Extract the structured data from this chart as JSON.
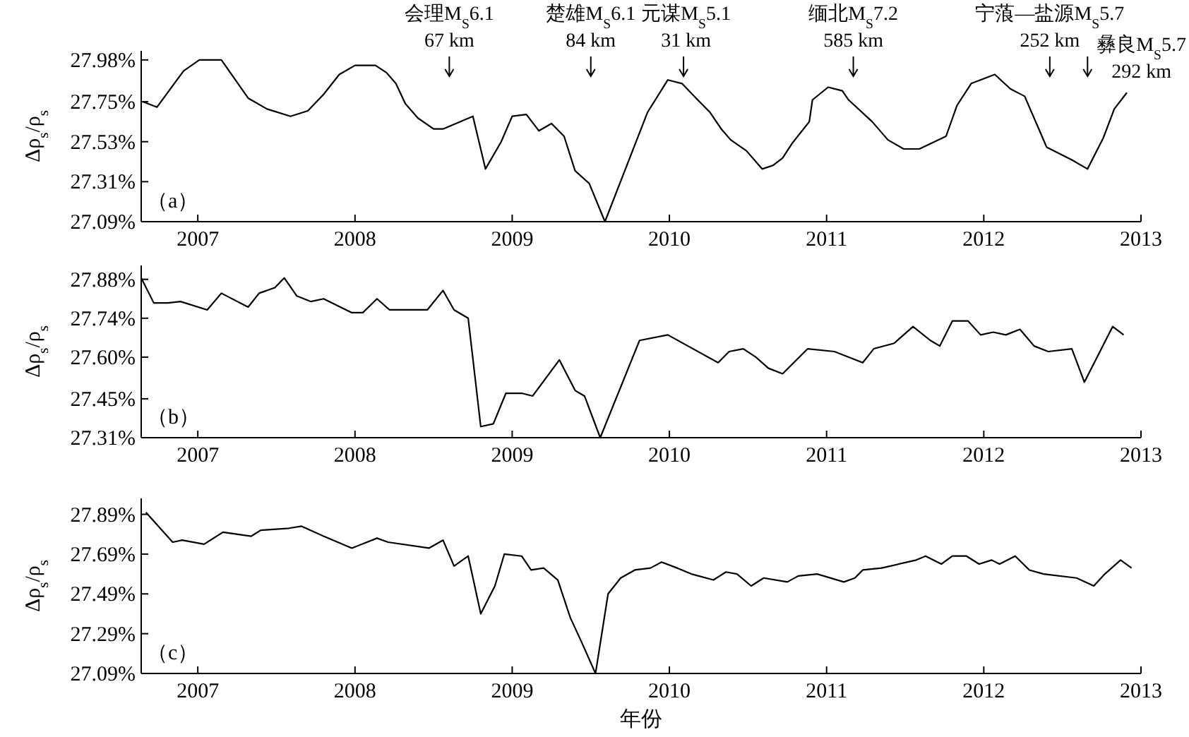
{
  "chart_data": [
    {
      "type": "line",
      "ylabel": "Δρ$_{s}$/ρ$_{s}$",
      "xlim": [
        2006.64,
        2013
      ],
      "xticks": [
        2007,
        2008,
        2009,
        2010,
        2011,
        2012,
        2013
      ],
      "ylim": [
        27.09,
        28.03
      ],
      "yticks": [
        {
          "value": 27.09,
          "label": "27.09%"
        },
        {
          "value": 27.31,
          "label": "27.31%"
        },
        {
          "value": 27.53,
          "label": "27.53%"
        },
        {
          "value": 27.75,
          "label": "27.75%"
        },
        {
          "value": 27.98,
          "label": "27.98%"
        }
      ],
      "grid": false,
      "line_style": "solid",
      "x": [
        2006.65,
        2006.74,
        2006.91,
        2007.01,
        2007.15,
        2007.32,
        2007.44,
        2007.59,
        2007.7,
        2007.8,
        2007.9,
        2008.0,
        2008.13,
        2008.2,
        2008.26,
        2008.32,
        2008.4,
        2008.5,
        2008.56,
        2008.75,
        2008.83,
        2008.93,
        2009.0,
        2009.09,
        2009.17,
        2009.25,
        2009.33,
        2009.4,
        2009.49,
        2009.59,
        2009.86,
        2009.99,
        2010.08,
        2010.18,
        2010.26,
        2010.33,
        2010.39,
        2010.49,
        2010.59,
        2010.66,
        2010.72,
        2010.78,
        2010.89,
        2010.91,
        2011.01,
        2011.1,
        2011.14,
        2011.29,
        2011.39,
        2011.49,
        2011.59,
        2011.76,
        2011.83,
        2011.92,
        2012.07,
        2012.17,
        2012.26,
        2012.4,
        2012.56,
        2012.66,
        2012.76,
        2012.83,
        2012.91
      ],
      "series": [
        {
          "color": "#000000",
          "values": [
            27.75,
            27.72,
            27.92,
            27.98,
            27.98,
            27.77,
            27.71,
            27.67,
            27.7,
            27.79,
            27.9,
            27.95,
            27.95,
            27.91,
            27.85,
            27.74,
            27.66,
            27.6,
            27.6,
            27.67,
            27.38,
            27.53,
            27.67,
            27.68,
            27.59,
            27.63,
            27.56,
            27.37,
            27.3,
            27.09,
            27.69,
            27.87,
            27.85,
            27.76,
            27.69,
            27.6,
            27.54,
            27.48,
            27.38,
            27.4,
            27.44,
            27.52,
            27.64,
            27.76,
            27.83,
            27.81,
            27.76,
            27.64,
            27.54,
            27.49,
            27.49,
            27.56,
            27.73,
            27.85,
            27.9,
            27.82,
            27.78,
            27.5,
            27.43,
            27.38,
            27.55,
            27.71,
            27.8
          ]
        }
      ],
      "ref_lines": [
        {
          "axis": "x",
          "value": 2008.6,
          "label": "会理M$_{S}$6.1\n67 km"
        },
        {
          "axis": "x",
          "value": 2009.5,
          "label": "楚雄M$_{S}$6.1\n84 km"
        },
        {
          "axis": "x",
          "value": 2010.09,
          "label": "元谋M$_{S}$5.1\n31 km"
        },
        {
          "axis": "x",
          "value": 2011.17,
          "label": "缅北M$_{S}$7.2\n585 km"
        },
        {
          "axis": "x",
          "value": 2012.42,
          "label": "宁蒗—盐源M$_{S}$5.7\n252 km"
        },
        {
          "axis": "x",
          "value": 2012.66,
          "label": "彝良M$_{S}$5.7\n292 km"
        }
      ],
      "annotations": [
        "（a）"
      ]
    },
    {
      "type": "line",
      "ylabel": "Δρ$_{s}$/ρ$_{s}$",
      "xlim": [
        2006.64,
        2013
      ],
      "xticks": [
        2007,
        2008,
        2009,
        2010,
        2011,
        2012,
        2013
      ],
      "ylim": [
        27.31,
        27.93
      ],
      "yticks": [
        {
          "value": 27.31,
          "label": "27.31%"
        },
        {
          "value": 27.45,
          "label": "27.45%"
        },
        {
          "value": 27.6,
          "label": "27.60%"
        },
        {
          "value": 27.74,
          "label": "27.74%"
        },
        {
          "value": 27.88,
          "label": "27.88%"
        }
      ],
      "grid": false,
      "line_style": "solid",
      "x": [
        2006.64,
        2006.72,
        2006.81,
        2006.89,
        2007.06,
        2007.15,
        2007.32,
        2007.39,
        2007.49,
        2007.55,
        2007.63,
        2007.72,
        2007.8,
        2007.98,
        2008.05,
        2008.14,
        2008.22,
        2008.46,
        2008.56,
        2008.63,
        2008.72,
        2008.8,
        2008.88,
        2008.96,
        2009.06,
        2009.13,
        2009.3,
        2009.4,
        2009.46,
        2009.56,
        2009.81,
        2009.99,
        2010.31,
        2010.38,
        2010.47,
        2010.55,
        2010.63,
        2010.72,
        2010.88,
        2011.05,
        2011.23,
        2011.3,
        2011.43,
        2011.55,
        2011.66,
        2011.72,
        2011.8,
        2011.9,
        2011.98,
        2012.06,
        2012.14,
        2012.23,
        2012.32,
        2012.41,
        2012.56,
        2012.64,
        2012.82,
        2012.89
      ],
      "series": [
        {
          "color": "#000000",
          "values": [
            27.885,
            27.795,
            27.795,
            27.8,
            27.77,
            27.83,
            27.78,
            27.83,
            27.85,
            27.885,
            27.82,
            27.8,
            27.81,
            27.76,
            27.76,
            27.81,
            27.77,
            27.77,
            27.84,
            27.77,
            27.74,
            27.35,
            27.36,
            27.47,
            27.47,
            27.46,
            27.59,
            27.48,
            27.46,
            27.31,
            27.66,
            27.68,
            27.58,
            27.62,
            27.63,
            27.6,
            27.56,
            27.54,
            27.63,
            27.62,
            27.58,
            27.63,
            27.65,
            27.71,
            27.66,
            27.64,
            27.73,
            27.73,
            27.68,
            27.69,
            27.68,
            27.7,
            27.64,
            27.62,
            27.63,
            27.51,
            27.71,
            27.68
          ]
        }
      ],
      "annotations": [
        "（b）"
      ]
    },
    {
      "type": "line",
      "ylabel": "Δρ$_{s}$/ρ$_{s}$",
      "xlabel": "年份",
      "xlim": [
        2006.64,
        2013
      ],
      "xticks": [
        2007,
        2008,
        2009,
        2010,
        2011,
        2012,
        2013
      ],
      "ylim": [
        27.09,
        27.97
      ],
      "yticks": [
        {
          "value": 27.09,
          "label": "27.09%"
        },
        {
          "value": 27.29,
          "label": "27.29%"
        },
        {
          "value": 27.49,
          "label": "27.49%"
        },
        {
          "value": 27.69,
          "label": "27.69%"
        },
        {
          "value": 27.89,
          "label": "27.89%"
        }
      ],
      "grid": false,
      "line_style": "solid",
      "x": [
        2006.67,
        2006.84,
        2006.9,
        2007.04,
        2007.16,
        2007.34,
        2007.4,
        2007.58,
        2007.66,
        2007.8,
        2007.98,
        2008.14,
        2008.21,
        2008.47,
        2008.56,
        2008.63,
        2008.72,
        2008.8,
        2008.89,
        2008.95,
        2009.06,
        2009.12,
        2009.2,
        2009.29,
        2009.37,
        2009.44,
        2009.53,
        2009.61,
        2009.69,
        2009.78,
        2009.88,
        2009.95,
        2010.05,
        2010.14,
        2010.28,
        2010.36,
        2010.43,
        2010.52,
        2010.6,
        2010.75,
        2010.82,
        2010.94,
        2011.11,
        2011.18,
        2011.23,
        2011.35,
        2011.57,
        2011.63,
        2011.73,
        2011.8,
        2011.89,
        2011.97,
        2012.05,
        2012.1,
        2012.2,
        2012.29,
        2012.38,
        2012.59,
        2012.7,
        2012.77,
        2012.87,
        2012.94
      ],
      "series": [
        {
          "color": "#000000",
          "values": [
            27.9,
            27.75,
            27.76,
            27.74,
            27.8,
            27.78,
            27.81,
            27.82,
            27.83,
            27.78,
            27.72,
            27.77,
            27.75,
            27.72,
            27.76,
            27.63,
            27.68,
            27.39,
            27.53,
            27.69,
            27.68,
            27.61,
            27.62,
            27.56,
            27.37,
            27.25,
            27.09,
            27.49,
            27.57,
            27.61,
            27.62,
            27.65,
            27.62,
            27.59,
            27.56,
            27.6,
            27.59,
            27.53,
            27.57,
            27.55,
            27.58,
            27.59,
            27.55,
            27.57,
            27.61,
            27.62,
            27.66,
            27.68,
            27.64,
            27.68,
            27.68,
            27.64,
            27.66,
            27.64,
            27.68,
            27.61,
            27.59,
            27.57,
            27.53,
            27.59,
            27.66,
            27.62
          ]
        }
      ],
      "annotations": [
        "（c）"
      ]
    }
  ]
}
